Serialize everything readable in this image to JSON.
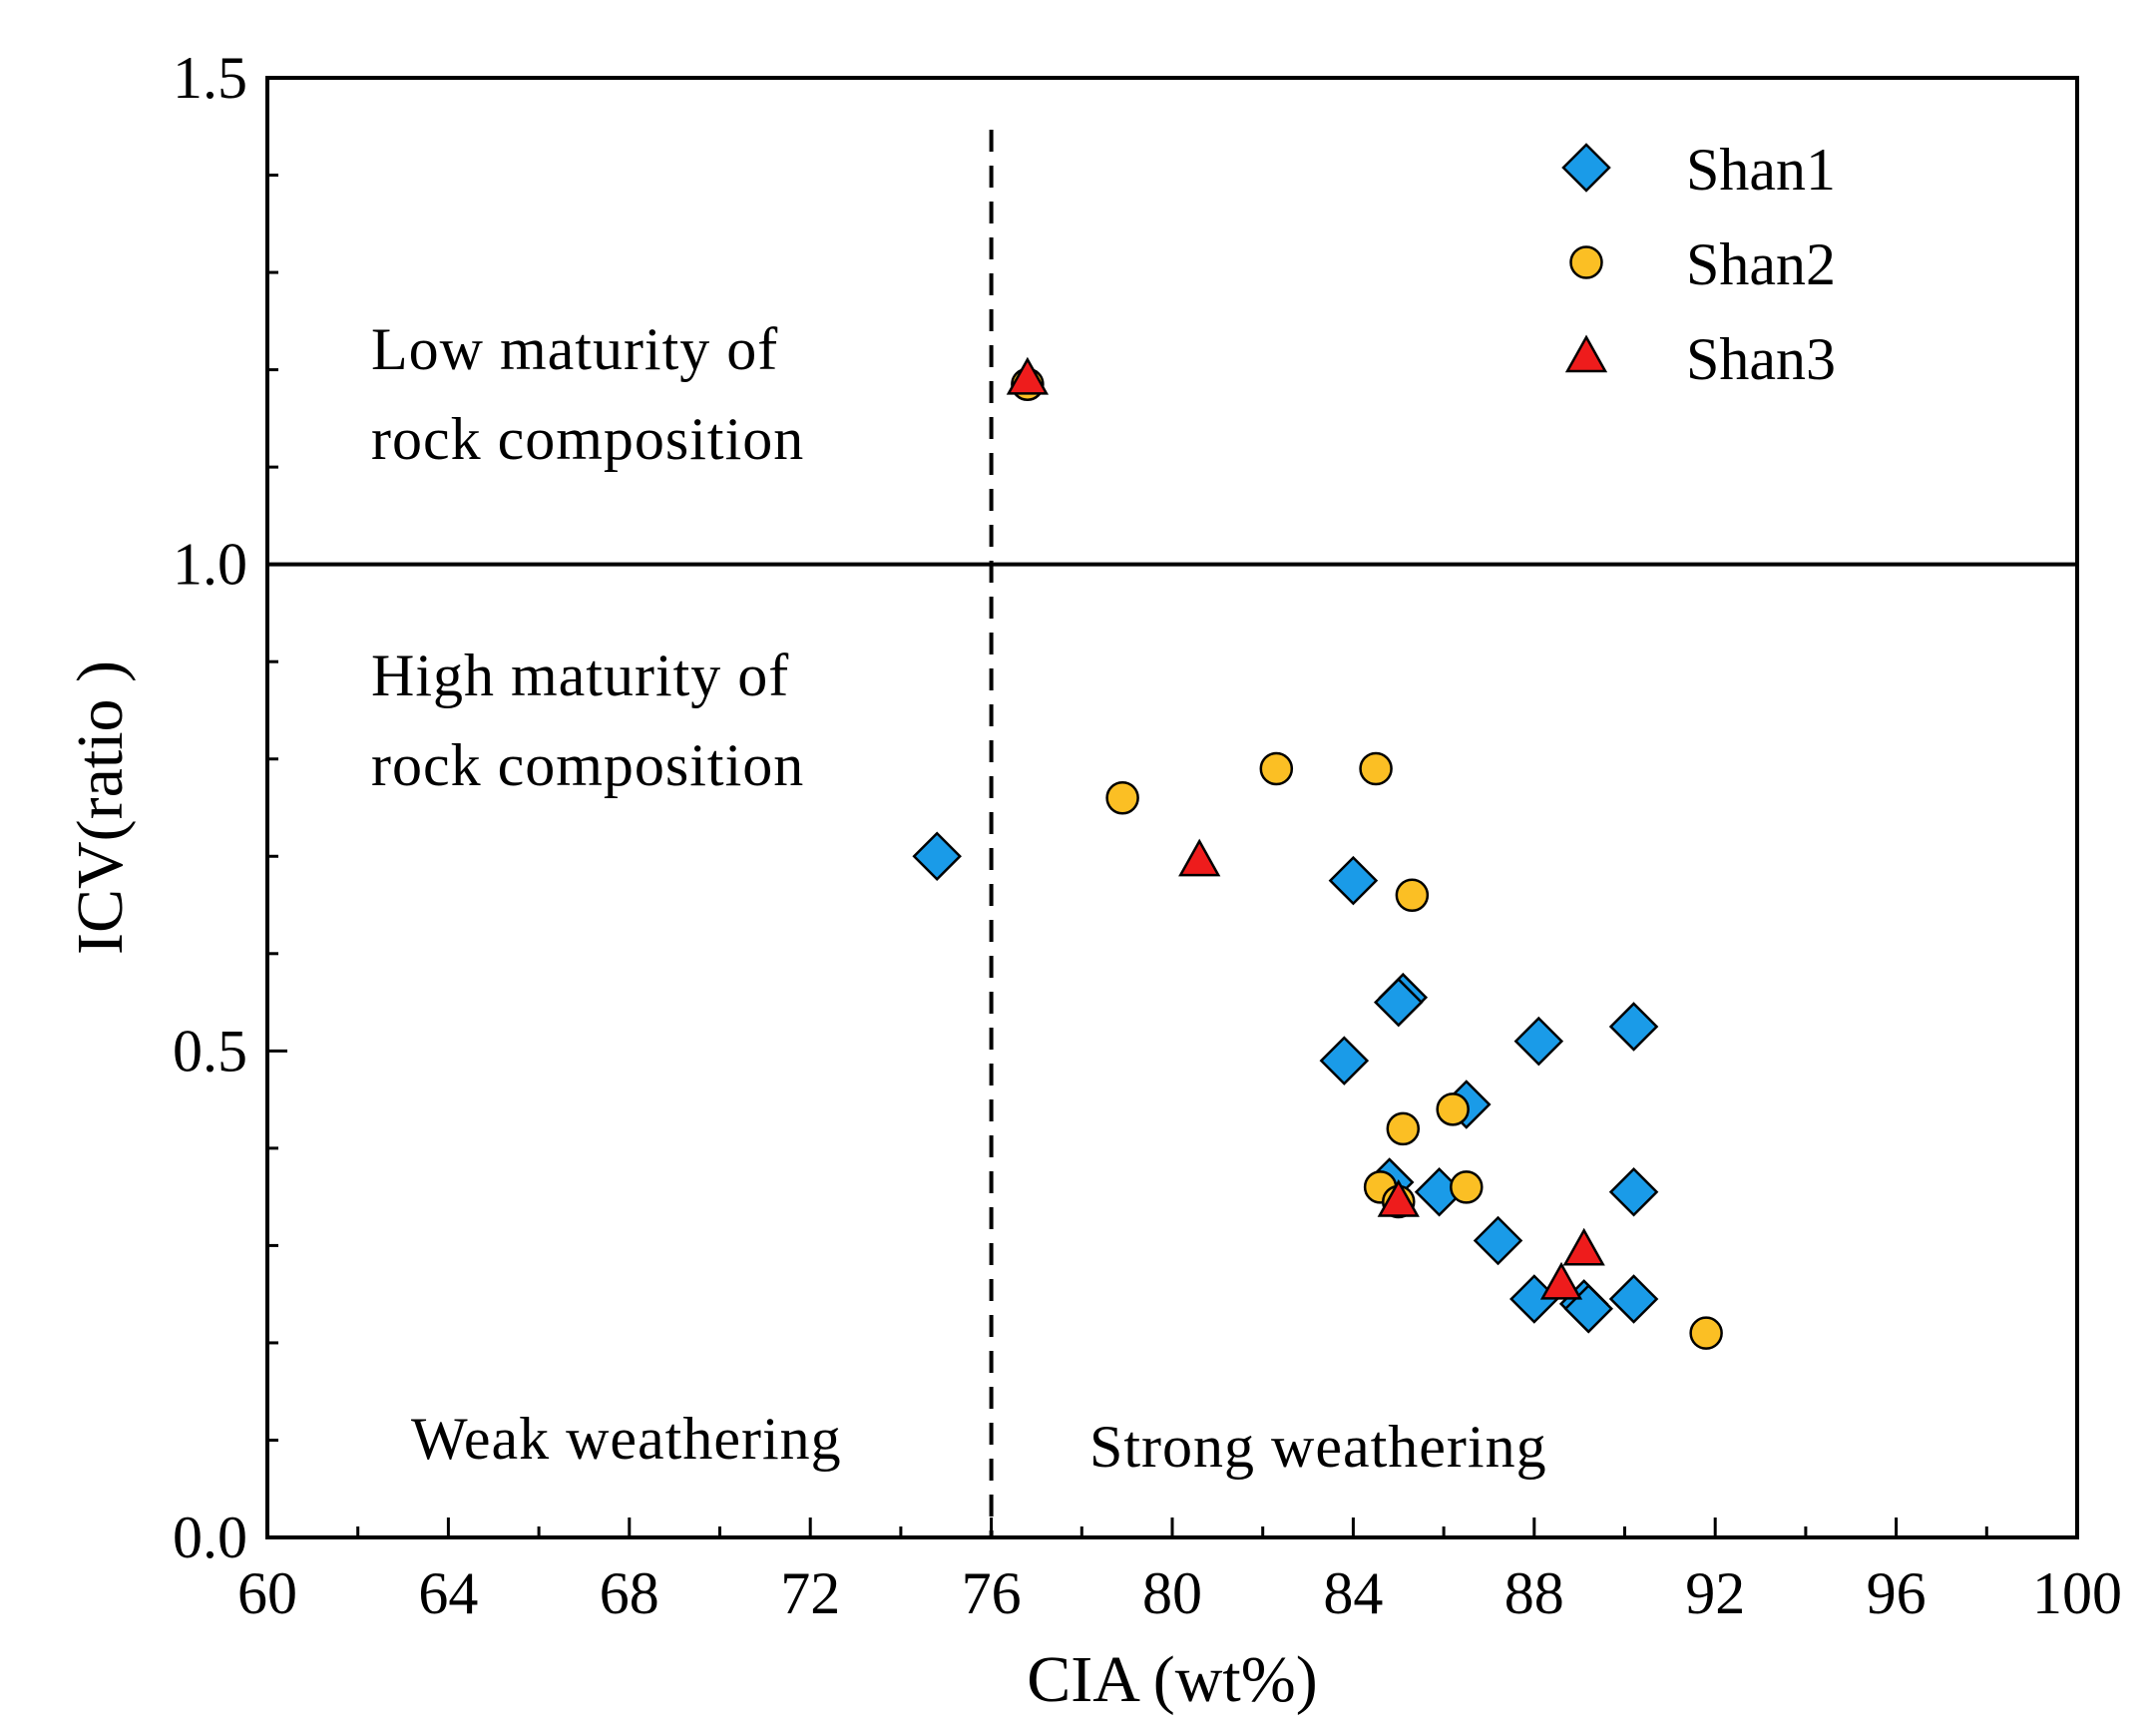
{
  "chart_data": {
    "type": "scatter",
    "title": "",
    "xlabel": "CIA (wt%)",
    "ylabel": "ICV(ratio )",
    "xlim": [
      60,
      100
    ],
    "ylim": [
      0.0,
      1.5
    ],
    "x_ticks": [
      60,
      64,
      68,
      72,
      76,
      80,
      84,
      88,
      92,
      96,
      100
    ],
    "x_tick_labels": [
      "60",
      "64",
      "68",
      "72",
      "76",
      "80",
      "84",
      "88",
      "92",
      "96",
      "100"
    ],
    "y_ticks": [
      0.0,
      0.5,
      1.0,
      1.5
    ],
    "y_tick_labels": [
      "0.0",
      "0.5",
      "1.0",
      "1.5"
    ],
    "reference_lines": [
      {
        "orientation": "horizontal",
        "value": 1.0,
        "style": "solid"
      },
      {
        "orientation": "vertical",
        "value": 76,
        "style": "dashed"
      }
    ],
    "region_labels": [
      {
        "id": "low-maturity",
        "lines": [
          "Low maturity of",
          "rock composition"
        ]
      },
      {
        "id": "high-maturity",
        "lines": [
          "High maturity of",
          "rock composition"
        ]
      },
      {
        "id": "weak",
        "lines": [
          "Weak weathering"
        ]
      },
      {
        "id": "strong",
        "lines": [
          "Strong weathering"
        ]
      }
    ],
    "legend_position": "top-right",
    "series": [
      {
        "name": "Shan1",
        "marker": "diamond",
        "color": "#1a9be8",
        "points": [
          [
            74.8,
            0.7
          ],
          [
            84.0,
            0.675
          ],
          [
            85.1,
            0.555
          ],
          [
            85.0,
            0.55
          ],
          [
            83.8,
            0.49
          ],
          [
            88.1,
            0.51
          ],
          [
            90.2,
            0.525
          ],
          [
            86.5,
            0.445
          ],
          [
            84.8,
            0.365
          ],
          [
            85.9,
            0.355
          ],
          [
            87.2,
            0.305
          ],
          [
            90.2,
            0.355
          ],
          [
            88.0,
            0.245
          ],
          [
            89.1,
            0.24
          ],
          [
            89.2,
            0.235
          ],
          [
            90.2,
            0.245
          ]
        ]
      },
      {
        "name": "Shan2",
        "marker": "circle",
        "color": "#fbbf24",
        "points": [
          [
            76.8,
            1.185
          ],
          [
            78.9,
            0.76
          ],
          [
            82.3,
            0.79
          ],
          [
            84.5,
            0.79
          ],
          [
            85.3,
            0.66
          ],
          [
            85.1,
            0.42
          ],
          [
            86.2,
            0.44
          ],
          [
            84.6,
            0.36
          ],
          [
            86.5,
            0.36
          ],
          [
            85.0,
            0.345
          ],
          [
            91.8,
            0.21
          ]
        ]
      },
      {
        "name": "Shan3",
        "marker": "triangle",
        "color": "#ee1c1c",
        "points": [
          [
            76.8,
            1.19
          ],
          [
            80.6,
            0.695
          ],
          [
            85.0,
            0.345
          ],
          [
            88.6,
            0.26
          ],
          [
            89.1,
            0.295
          ]
        ]
      }
    ]
  }
}
